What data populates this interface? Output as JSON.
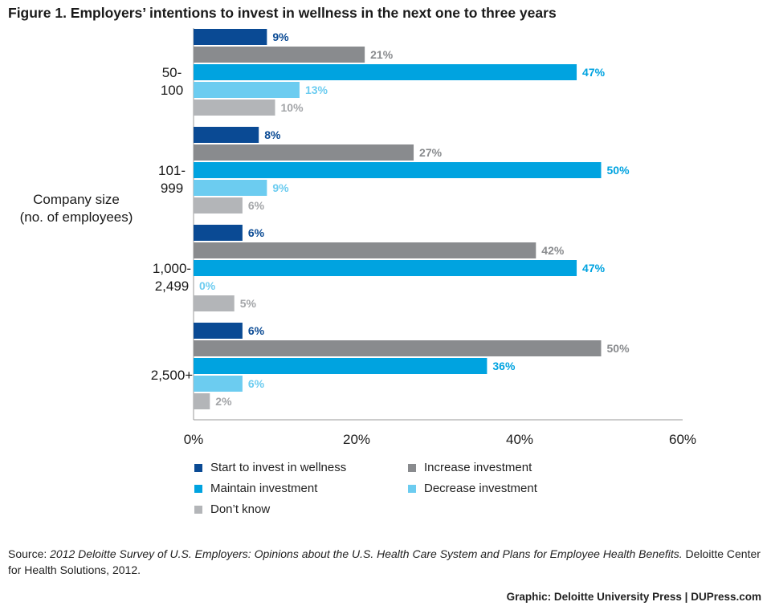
{
  "title": "Figure 1. Employers’ intentions to invest in wellness in the next one to three years",
  "chart_data": {
    "type": "bar",
    "orientation": "horizontal",
    "categories": [
      "50-\n100",
      "101-\n999",
      "1,000-\n2,499",
      "2,500+"
    ],
    "ylabel": "Company size\n(no. of employees)",
    "xlim": [
      0,
      60
    ],
    "xticks": [
      "0%",
      "20%",
      "40%",
      "60%"
    ],
    "xtick_values": [
      0,
      20,
      40,
      60
    ],
    "grid": false,
    "legend_position": "bottom",
    "series": [
      {
        "name": "Start to invest in wellness",
        "color": "#0a4a94",
        "label_color": "#0a4a94",
        "values": [
          9,
          8,
          6,
          6
        ]
      },
      {
        "name": "Increase investment",
        "color": "#898b8e",
        "label_color": "#898b8e",
        "values": [
          21,
          27,
          42,
          50
        ]
      },
      {
        "name": "Maintain investment",
        "color": "#00a3e0",
        "label_color": "#00a3e0",
        "values": [
          47,
          50,
          47,
          36
        ]
      },
      {
        "name": "Decrease investment",
        "color": "#6cccf0",
        "label_color": "#6cccf0",
        "values": [
          13,
          9,
          0,
          6
        ]
      },
      {
        "name": "Don’t know",
        "color": "#b3b5b8",
        "label_color": "#a3a5a8",
        "values": [
          10,
          6,
          5,
          2
        ]
      }
    ],
    "value_suffix": "%"
  },
  "source": {
    "prefix": "Source: ",
    "italic": "2012 Deloitte Survey of U.S. Employers: Opinions about the U.S. Health Care System and Plans for Employee Health Benefits.",
    "suffix": " Deloitte Center for Health Solutions, 2012."
  },
  "credit": "Graphic: Deloitte University Press  |  DUPress.com"
}
